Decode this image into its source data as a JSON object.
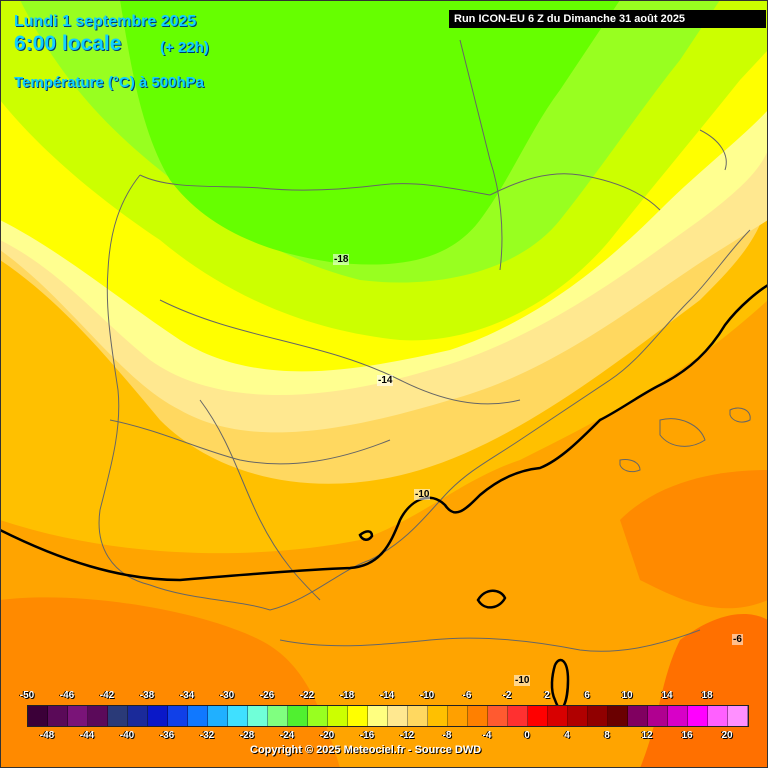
{
  "header": {
    "date_line": "Lundi 1 septembre 2025",
    "time_line": "6:00 locale",
    "lead_time": "(+ 22h)",
    "parameter": "Température (°C) à 500hPa",
    "run_info": "Run ICON-EU 6 Z du Dimanche 31 août 2025"
  },
  "contour_labels": [
    {
      "name": "isotherm-label-minus18",
      "text": "-18"
    },
    {
      "name": "isotherm-label-minus14",
      "text": "-14"
    },
    {
      "name": "isotherm-label-minus10",
      "text": "-10"
    },
    {
      "name": "isotherm-label-minus10-south",
      "text": "-10"
    },
    {
      "name": "isotherm-label-minus6",
      "text": "-6"
    }
  ],
  "legend": {
    "upper_ticks": [
      "-50",
      "-46",
      "-42",
      "-38",
      "-34",
      "-30",
      "-26",
      "-22",
      "-18",
      "-14",
      "-10",
      "-6",
      "-2",
      "2",
      "6",
      "10",
      "14",
      "18"
    ],
    "lower_ticks": [
      "-48",
      "-44",
      "-40",
      "-36",
      "-32",
      "-28",
      "-24",
      "-20",
      "-16",
      "-12",
      "-8",
      "-4",
      "0",
      "4",
      "8",
      "12",
      "16",
      "20"
    ],
    "colors": [
      "#3b0038",
      "#5a0a58",
      "#7a1478",
      "#5b0a5a",
      "#2a3a78",
      "#1a2a9a",
      "#0a18c8",
      "#1040e8",
      "#1078ff",
      "#20b0ff",
      "#40e0ff",
      "#70ffd8",
      "#80ff80",
      "#50f030",
      "#98ff20",
      "#ccff00",
      "#ffff00",
      "#ffff80",
      "#ffe890",
      "#ffd860",
      "#ffc000",
      "#ffa000",
      "#ff8000",
      "#ff5a30",
      "#ff3030",
      "#ff0000",
      "#d80000",
      "#b00000",
      "#900000",
      "#6a0000",
      "#800060",
      "#b00090",
      "#d800c8",
      "#ff00ff",
      "#ff60ff",
      "#ff90ff"
    ]
  },
  "copyright": "Copyright © 2025 Meteociel.fr - Source DWD"
}
